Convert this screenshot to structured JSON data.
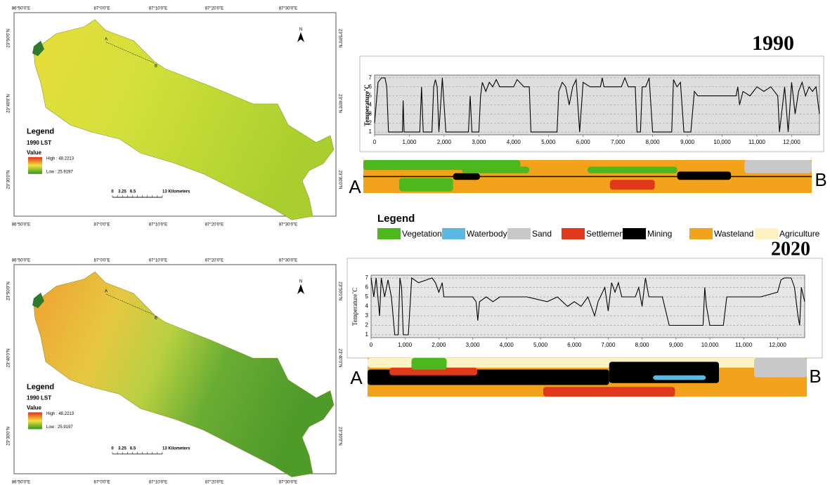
{
  "maps": [
    {
      "lon_labels": [
        "86°50'0\"E",
        "87°0'0\"E",
        "87°10'0\"E",
        "87°20'0\"E",
        "87°30'0\"E"
      ],
      "lat_labels": [
        "23°50'0\"N",
        "23°40'0\"N",
        "23°30'0\"N"
      ],
      "north": "N",
      "point_a": "A",
      "point_b": "B",
      "legend": {
        "title": "Legend",
        "layer": "1990 LST",
        "value": "Value",
        "high": "High : 48.2213",
        "low": "Low : 25.9197"
      },
      "scale": [
        "0",
        "3.25",
        "6.5",
        "13 Kilometers"
      ]
    },
    {
      "lon_labels": [
        "86°50'0\"E",
        "87°0'0\"E",
        "87°10'0\"E",
        "87°20'0\"E",
        "87°30'0\"E"
      ],
      "lat_labels": [
        "23°50'0\"N",
        "23°40'0\"N",
        "23°30'0\"N"
      ],
      "north": "N",
      "point_a": "A",
      "point_b": "B",
      "legend": {
        "title": "Legend",
        "layer": "1990 LST",
        "value": "Value",
        "high": "High : 48.2213",
        "low": "Low : 25.9197"
      },
      "scale": [
        "0",
        "3.25",
        "6.5",
        "13 Kilometers"
      ]
    }
  ],
  "chart_data": [
    {
      "type": "line",
      "title": "1990",
      "ylabel": "Temperature˚C",
      "color": "#000000",
      "grid": true,
      "x": [
        0,
        100,
        200,
        300,
        350,
        400,
        800,
        820,
        850,
        1300,
        1350,
        1400,
        1650,
        1700,
        1750,
        1800,
        1850,
        1950,
        2050,
        2700,
        2750,
        2800,
        3000,
        3050,
        3100,
        3200,
        3300,
        3400,
        3500,
        3600,
        4000,
        4100,
        4300,
        4450,
        4500,
        5250,
        5300,
        5400,
        5500,
        5600,
        5700,
        5800,
        5900,
        6000,
        6200,
        6500,
        6550,
        6600,
        7100,
        7200,
        7300,
        7500,
        7550,
        7650,
        7700,
        7800,
        7900,
        8000,
        8550,
        8600,
        8700,
        8800,
        8900,
        9100,
        9200,
        9300,
        9500,
        9700,
        10400,
        10450,
        10500,
        10600,
        10800,
        11000,
        11200,
        11400,
        11600,
        11650,
        11800,
        11900,
        12000,
        12100,
        12200,
        12300,
        12400,
        12500,
        12600,
        12700,
        12800
      ],
      "values": [
        2,
        6.5,
        7,
        7,
        6,
        1,
        1,
        4.5,
        1,
        1,
        6,
        1,
        1,
        6,
        6.8,
        6,
        1,
        7,
        1,
        1,
        5,
        1,
        1,
        5,
        6.5,
        5.5,
        6.5,
        6,
        6.8,
        6,
        6,
        6.8,
        6,
        6,
        1,
        1,
        5.5,
        6.5,
        6,
        4,
        6,
        6.8,
        1,
        6.5,
        6,
        6,
        7,
        6,
        6,
        7,
        6,
        6,
        1,
        1,
        6,
        6,
        7,
        1,
        1,
        6.8,
        6,
        6.5,
        1,
        1,
        5.5,
        5,
        5,
        5,
        5,
        6,
        4,
        5.5,
        5,
        6,
        5.5,
        6,
        5,
        1,
        6,
        1,
        6.5,
        3,
        5.5,
        6.5,
        5,
        6,
        5.5,
        6,
        3
      ],
      "xlim": [
        0,
        12800
      ],
      "ylim": [
        0.7,
        7.3
      ],
      "xticks": [
        0,
        {
          "value": 1000,
          "label": "1,000"
        },
        {
          "value": 2000,
          "label": "2,000"
        },
        {
          "value": 3000,
          "label": "3,000"
        },
        {
          "value": 4000,
          "label": "4,000"
        },
        {
          "value": 5000,
          "label": "5,000"
        },
        {
          "value": 6000,
          "label": "6,000"
        },
        {
          "value": 7000,
          "label": "7,000"
        },
        {
          "value": 8000,
          "label": "8,000"
        },
        {
          "value": 9000,
          "label": "9,000"
        },
        {
          "value": 10000,
          "label": "10,000"
        },
        {
          "value": 11000,
          "label": "11,000"
        },
        {
          "value": 12000,
          "label": "12,000"
        }
      ],
      "yticks": [
        1,
        2,
        3,
        4,
        5,
        6,
        7
      ]
    },
    {
      "type": "line",
      "title": "2020",
      "ylabel": "Temperature˚C",
      "color": "#000000",
      "grid": true,
      "x": [
        0,
        80,
        150,
        250,
        300,
        400,
        500,
        600,
        700,
        800,
        850,
        900,
        950,
        1100,
        1200,
        1400,
        1800,
        1900,
        2000,
        2100,
        2150,
        2600,
        3000,
        3100,
        3150,
        3200,
        3400,
        3600,
        3800,
        4200,
        4600,
        5200,
        5500,
        5800,
        6000,
        6200,
        6400,
        6600,
        6700,
        6900,
        7000,
        7100,
        7200,
        7300,
        7400,
        7800,
        7900,
        8000,
        8100,
        8200,
        8600,
        8800,
        9800,
        9850,
        9900,
        10000,
        10400,
        10500,
        11500,
        12000,
        12100,
        12200,
        12400,
        12500,
        12600,
        12650,
        12700,
        12800
      ],
      "values": [
        7,
        5,
        7,
        3,
        7,
        5,
        6.8,
        5,
        1,
        1,
        7,
        6,
        1,
        1,
        7,
        6.5,
        7,
        6.5,
        5.5,
        6.5,
        5,
        5,
        5,
        4.5,
        2.5,
        4.5,
        5,
        4.5,
        5,
        5,
        5,
        4.5,
        5,
        4,
        4.5,
        4,
        5,
        3,
        4.5,
        6,
        3.5,
        6.5,
        5.5,
        6.5,
        5,
        5,
        6,
        4,
        7,
        5,
        5,
        2,
        2,
        6,
        4,
        2,
        2,
        5,
        5,
        5.5,
        6.8,
        7,
        7,
        6,
        3,
        2,
        6,
        4.5
      ],
      "xlim": [
        0,
        12800
      ],
      "ylim": [
        0.7,
        7.3
      ],
      "xticks": [
        0,
        {
          "value": 1000,
          "label": "1,000"
        },
        {
          "value": 2000,
          "label": "2,000"
        },
        {
          "value": 3000,
          "label": "3,000"
        },
        {
          "value": 4000,
          "label": "4,000"
        },
        {
          "value": 5000,
          "label": "5,000"
        },
        {
          "value": 6000,
          "label": "6,000"
        },
        {
          "value": 7000,
          "label": "7,000"
        },
        {
          "value": 8000,
          "label": "8,000"
        },
        {
          "value": 9000,
          "label": "9,000"
        },
        {
          "value": 10000,
          "label": "10,000"
        },
        {
          "value": 11000,
          "label": "11,000"
        },
        {
          "value": 12000,
          "label": "12,000"
        }
      ],
      "yticks": [
        1,
        2,
        3,
        4,
        5,
        6,
        7
      ]
    }
  ],
  "transects": [
    {
      "start": "A",
      "end": "B"
    },
    {
      "start": "A",
      "end": "B"
    }
  ],
  "landuse_legend": {
    "title": "Legend",
    "items": [
      {
        "name": "Vegetation",
        "color": "#4cb81e"
      },
      {
        "name": "Waterbody",
        "color": "#5bb8e0"
      },
      {
        "name": "Sand",
        "color": "#c8c8c8"
      },
      {
        "name": "Settlement",
        "color": "#e0391c"
      },
      {
        "name": "Mining",
        "color": "#000000"
      },
      {
        "name": "Wasteland",
        "color": "#f2a21b"
      },
      {
        "name": "Agriculture",
        "color": "#fdf2c4"
      }
    ]
  }
}
